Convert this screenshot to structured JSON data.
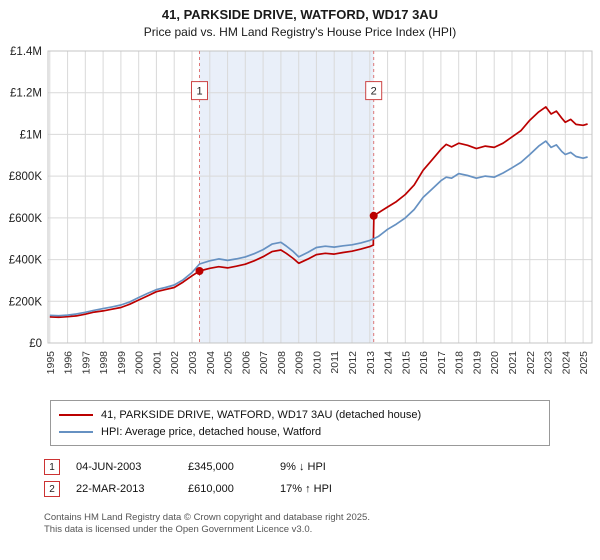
{
  "header": {
    "title": "41, PARKSIDE DRIVE, WATFORD, WD17 3AU",
    "subtitle": "Price paid vs. HM Land Registry's House Price Index (HPI)"
  },
  "legend": [
    {
      "label": "41, PARKSIDE DRIVE, WATFORD, WD17 3AU (detached house)",
      "color": "#bb0000"
    },
    {
      "label": "HPI: Average price, detached house, Watford",
      "color": "#6691c2"
    }
  ],
  "annotations": [
    {
      "num": "1",
      "date": "04-JUN-2003",
      "price": "£345,000",
      "note": "9% ↓ HPI"
    },
    {
      "num": "2",
      "date": "22-MAR-2013",
      "price": "£610,000",
      "note": "17% ↑ HPI"
    }
  ],
  "footer": {
    "line1": "Contains HM Land Registry data © Crown copyright and database right 2025.",
    "line2": "This data is licensed under the Open Government Licence v3.0."
  },
  "chart_data": {
    "type": "line",
    "title": "41, PARKSIDE DRIVE, WATFORD, WD17 3AU — Price paid vs. HPI",
    "xlabel": "Year",
    "ylabel": "Price (GBP)",
    "xlim": [
      1994.9,
      2025.5
    ],
    "ylim": [
      0,
      1400000
    ],
    "grid": true,
    "legend_position": "bottom",
    "y_ticks": [
      {
        "v": 0,
        "label": "£0"
      },
      {
        "v": 200000,
        "label": "£200K"
      },
      {
        "v": 400000,
        "label": "£400K"
      },
      {
        "v": 600000,
        "label": "£600K"
      },
      {
        "v": 800000,
        "label": "£800K"
      },
      {
        "v": 1000000,
        "label": "£1M"
      },
      {
        "v": 1200000,
        "label": "£1.2M"
      },
      {
        "v": 1400000,
        "label": "£1.4M"
      }
    ],
    "x_ticks": [
      1995,
      1996,
      1997,
      1998,
      1999,
      2000,
      2001,
      2002,
      2003,
      2004,
      2005,
      2006,
      2007,
      2008,
      2009,
      2010,
      2011,
      2012,
      2013,
      2014,
      2015,
      2016,
      2017,
      2018,
      2019,
      2020,
      2021,
      2022,
      2023,
      2024,
      2025
    ],
    "shaded_region": [
      2003.42,
      2013.22
    ],
    "events": [
      {
        "n": "1",
        "x": 2003.42,
        "y": 345000
      },
      {
        "n": "2",
        "x": 2013.22,
        "y": 610000
      }
    ],
    "series": [
      {
        "name": "41, PARKSIDE DRIVE, WATFORD, WD17 3AU (detached house)",
        "color": "#bb0000",
        "points": [
          [
            1995,
            125000
          ],
          [
            1995.5,
            123000
          ],
          [
            1996,
            126000
          ],
          [
            1996.5,
            130000
          ],
          [
            1997,
            138000
          ],
          [
            1997.5,
            148000
          ],
          [
            1998,
            154000
          ],
          [
            1998.5,
            162000
          ],
          [
            1999,
            170000
          ],
          [
            1999.5,
            186000
          ],
          [
            2000,
            206000
          ],
          [
            2000.5,
            226000
          ],
          [
            2001,
            246000
          ],
          [
            2001.5,
            256000
          ],
          [
            2002,
            266000
          ],
          [
            2002.5,
            292000
          ],
          [
            2003,
            322000
          ],
          [
            2003.42,
            345000
          ],
          [
            2004,
            358000
          ],
          [
            2004.5,
            366000
          ],
          [
            2005,
            360000
          ],
          [
            2005.5,
            368000
          ],
          [
            2006,
            378000
          ],
          [
            2006.5,
            394000
          ],
          [
            2007,
            414000
          ],
          [
            2007.5,
            438000
          ],
          [
            2008,
            446000
          ],
          [
            2008.3,
            430000
          ],
          [
            2008.7,
            405000
          ],
          [
            2009,
            382000
          ],
          [
            2009.5,
            402000
          ],
          [
            2010,
            424000
          ],
          [
            2010.5,
            430000
          ],
          [
            2011,
            426000
          ],
          [
            2011.5,
            434000
          ],
          [
            2012,
            440000
          ],
          [
            2012.5,
            450000
          ],
          [
            2013,
            462000
          ],
          [
            2013.2,
            470000
          ],
          [
            2013.23,
            610000
          ],
          [
            2013.5,
            625000
          ],
          [
            2014,
            652000
          ],
          [
            2014.5,
            678000
          ],
          [
            2015,
            712000
          ],
          [
            2015.5,
            758000
          ],
          [
            2016,
            828000
          ],
          [
            2016.5,
            878000
          ],
          [
            2017,
            928000
          ],
          [
            2017.3,
            952000
          ],
          [
            2017.6,
            940000
          ],
          [
            2018,
            958000
          ],
          [
            2018.5,
            948000
          ],
          [
            2019,
            932000
          ],
          [
            2019.5,
            944000
          ],
          [
            2020,
            938000
          ],
          [
            2020.5,
            958000
          ],
          [
            2021,
            988000
          ],
          [
            2021.5,
            1018000
          ],
          [
            2022,
            1068000
          ],
          [
            2022.5,
            1108000
          ],
          [
            2022.9,
            1132000
          ],
          [
            2023.2,
            1098000
          ],
          [
            2023.5,
            1112000
          ],
          [
            2023.8,
            1078000
          ],
          [
            2024,
            1058000
          ],
          [
            2024.3,
            1072000
          ],
          [
            2024.6,
            1048000
          ],
          [
            2025,
            1044000
          ],
          [
            2025.25,
            1050000
          ]
        ]
      },
      {
        "name": "HPI: Average price, detached house, Watford",
        "color": "#6691c2",
        "points": [
          [
            1995,
            133000
          ],
          [
            1995.5,
            131000
          ],
          [
            1996,
            134000
          ],
          [
            1996.5,
            139000
          ],
          [
            1997,
            147000
          ],
          [
            1997.5,
            157000
          ],
          [
            1998,
            165000
          ],
          [
            1998.5,
            173000
          ],
          [
            1999,
            182000
          ],
          [
            1999.5,
            197000
          ],
          [
            2000,
            218000
          ],
          [
            2000.5,
            238000
          ],
          [
            2001,
            256000
          ],
          [
            2001.5,
            266000
          ],
          [
            2002,
            278000
          ],
          [
            2002.5,
            303000
          ],
          [
            2003,
            338000
          ],
          [
            2003.42,
            379000
          ],
          [
            2004,
            394000
          ],
          [
            2004.5,
            403000
          ],
          [
            2005,
            396000
          ],
          [
            2005.5,
            403000
          ],
          [
            2006,
            413000
          ],
          [
            2006.5,
            428000
          ],
          [
            2007,
            448000
          ],
          [
            2007.5,
            474000
          ],
          [
            2008,
            483000
          ],
          [
            2008.3,
            465000
          ],
          [
            2008.7,
            438000
          ],
          [
            2009,
            413000
          ],
          [
            2009.5,
            434000
          ],
          [
            2010,
            458000
          ],
          [
            2010.5,
            464000
          ],
          [
            2011,
            460000
          ],
          [
            2011.5,
            466000
          ],
          [
            2012,
            471000
          ],
          [
            2012.5,
            480000
          ],
          [
            2013,
            492000
          ],
          [
            2013.22,
            500000
          ],
          [
            2013.5,
            512000
          ],
          [
            2014,
            545000
          ],
          [
            2014.5,
            570000
          ],
          [
            2015,
            600000
          ],
          [
            2015.5,
            640000
          ],
          [
            2016,
            698000
          ],
          [
            2016.5,
            738000
          ],
          [
            2017,
            778000
          ],
          [
            2017.3,
            795000
          ],
          [
            2017.6,
            790000
          ],
          [
            2018,
            812000
          ],
          [
            2018.5,
            803000
          ],
          [
            2019,
            790000
          ],
          [
            2019.5,
            800000
          ],
          [
            2020,
            795000
          ],
          [
            2020.5,
            815000
          ],
          [
            2021,
            840000
          ],
          [
            2021.5,
            866000
          ],
          [
            2022,
            904000
          ],
          [
            2022.5,
            944000
          ],
          [
            2022.9,
            968000
          ],
          [
            2023.2,
            938000
          ],
          [
            2023.5,
            950000
          ],
          [
            2023.8,
            918000
          ],
          [
            2024,
            904000
          ],
          [
            2024.3,
            914000
          ],
          [
            2024.6,
            894000
          ],
          [
            2025,
            886000
          ],
          [
            2025.25,
            892000
          ]
        ]
      }
    ]
  }
}
